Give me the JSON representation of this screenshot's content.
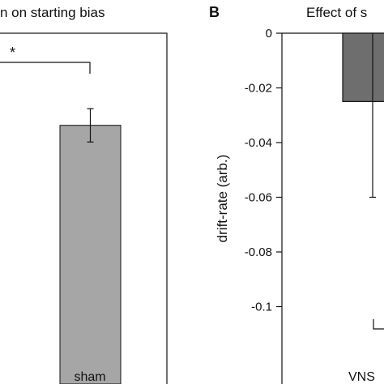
{
  "chart_data": [
    {
      "type": "bar",
      "title": "n on starting bias",
      "categories": [
        "sham"
      ],
      "values": [
        0.31
      ],
      "errors": [
        0.02
      ],
      "significance": "*",
      "colors": {
        "bar": "#a6a6a6",
        "axis": "#111111"
      }
    },
    {
      "type": "bar",
      "panel_label": "B",
      "title": "Effect of s",
      "ylabel": "drift-rate (arb.)",
      "categories": [
        "VNS"
      ],
      "values": [
        -0.025
      ],
      "errors": [
        0.035
      ],
      "ylim": [
        -0.12,
        0
      ],
      "yticks": [
        0,
        -0.02,
        -0.04,
        -0.06,
        -0.08,
        -0.1
      ],
      "ytick_labels": [
        "0",
        "-0.02",
        "-0.04",
        "-0.06",
        "-0.08",
        "-0.1"
      ],
      "colors": {
        "bar": "#6e6e6e",
        "axis": "#111111"
      }
    }
  ]
}
